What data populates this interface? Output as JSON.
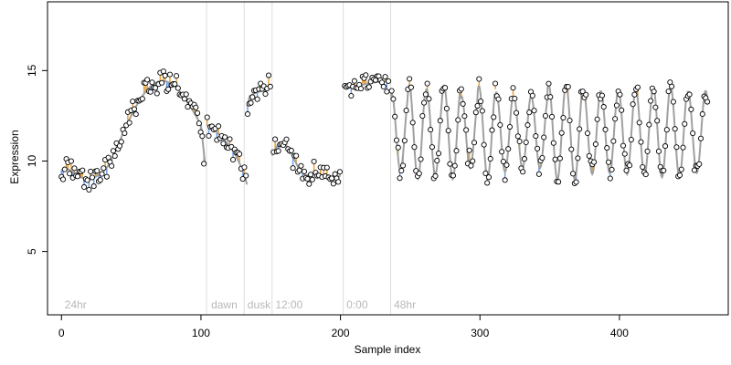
{
  "chart_data": {
    "type": "scatter",
    "xlabel": "Sample index",
    "ylabel": "Expression",
    "xlim": [
      -10,
      478
    ],
    "ylim": [
      1.5,
      18.8
    ],
    "x_ticks": [
      0,
      100,
      200,
      300,
      400
    ],
    "y_ticks": [
      5,
      10,
      15
    ],
    "grid": false,
    "colors": {
      "smooth_line": "#a0a0a0",
      "residual_up": "#e8a33d",
      "residual_down": "#6f9fe8",
      "point_edge": "#000000",
      "point_fill": "#ffffff",
      "guide_line": "#dddddd",
      "annotation": "#b8b8b8"
    },
    "annotations": [
      {
        "x": 1,
        "label": "24hr"
      },
      {
        "x": 106,
        "label": "dawn"
      },
      {
        "x": 132,
        "label": "dusk"
      },
      {
        "x": 152,
        "label": "12:00"
      },
      {
        "x": 203,
        "label": "0:00"
      },
      {
        "x": 237,
        "label": "48hr"
      }
    ],
    "guide_lines_x": [
      104,
      131,
      151,
      202,
      236
    ],
    "segments": [
      {
        "type": "poly",
        "x": [
          0,
          3,
          6,
          10,
          14,
          18,
          22,
          26,
          30,
          35,
          40
        ],
        "y": [
          9.5,
          9.6,
          9.5,
          9.3,
          9.1,
          9.0,
          9.0,
          9.2,
          9.4,
          9.9,
          10.8
        ]
      },
      {
        "type": "peak",
        "x0": 40,
        "x1": 100,
        "base": 10.8,
        "top": 14.4,
        "end": 12.0
      },
      {
        "type": "poly",
        "x": [
          100,
          103
        ],
        "y": [
          12.0,
          9.8
        ]
      },
      {
        "type": "poly",
        "x": [
          104,
          110,
          115,
          120,
          125,
          130,
          133
        ],
        "y": [
          12.0,
          11.7,
          11.3,
          10.9,
          10.3,
          9.5,
          8.7
        ]
      },
      {
        "type": "poly",
        "x": [
          133,
          135,
          140,
          145,
          150
        ],
        "y": [
          13.0,
          13.6,
          13.8,
          13.9,
          14.2
        ]
      },
      {
        "type": "poly",
        "x": [
          151,
          155,
          160,
          165,
          170,
          175,
          180,
          185,
          190,
          195,
          200
        ],
        "y": [
          10.3,
          10.9,
          11.0,
          10.4,
          9.6,
          9.2,
          9.3,
          9.3,
          9.1,
          9.0,
          9.2
        ]
      },
      {
        "type": "poly",
        "x": [
          203,
          210,
          220,
          230,
          235
        ],
        "y": [
          14.0,
          14.1,
          14.3,
          14.4,
          14.4
        ]
      },
      {
        "type": "osc",
        "x0": 236,
        "x1": 463,
        "period": 12.5,
        "mid": 11.6,
        "amp": 2.3,
        "seed": 7
      }
    ],
    "points": {
      "count": 400,
      "noise": 0.45,
      "seed": 42
    }
  }
}
